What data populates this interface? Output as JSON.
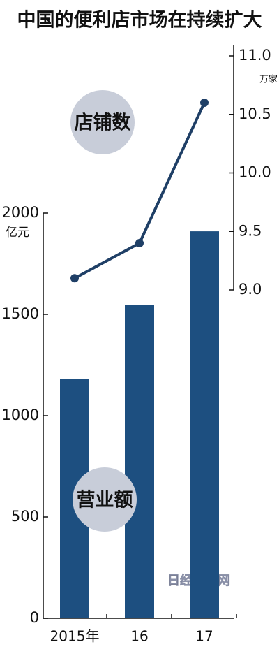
{
  "chart_data": {
    "type": "bar",
    "title": "中国的便利店市场在持续扩大",
    "y_unit": "亿元",
    "y2_unit": "万家",
    "watermark": "日经中文网",
    "categories": [
      "2015年",
      "16",
      "17"
    ],
    "series": [
      {
        "name": "营业额",
        "type": "bar",
        "color": "#1d4f80",
        "values": [
          1180,
          1545,
          1910
        ]
      },
      {
        "name": "店铺数",
        "type": "line",
        "axis": "y2",
        "color": "#1f3f66",
        "values": [
          9.1,
          9.4,
          10.6
        ]
      }
    ],
    "ylim": [
      0,
      2000
    ],
    "yticks": [
      0,
      500,
      1000,
      1500,
      2000
    ],
    "y2lim": [
      9.0,
      11.0
    ],
    "y2ticks": [
      {
        "value": 9.0,
        "label": "9.0"
      },
      {
        "value": 9.5,
        "label": "9.5"
      },
      {
        "value": 10.0,
        "label": "10.0"
      },
      {
        "value": 10.5,
        "label": "10.5"
      },
      {
        "value": 11.0,
        "label": "11.0"
      }
    ]
  }
}
